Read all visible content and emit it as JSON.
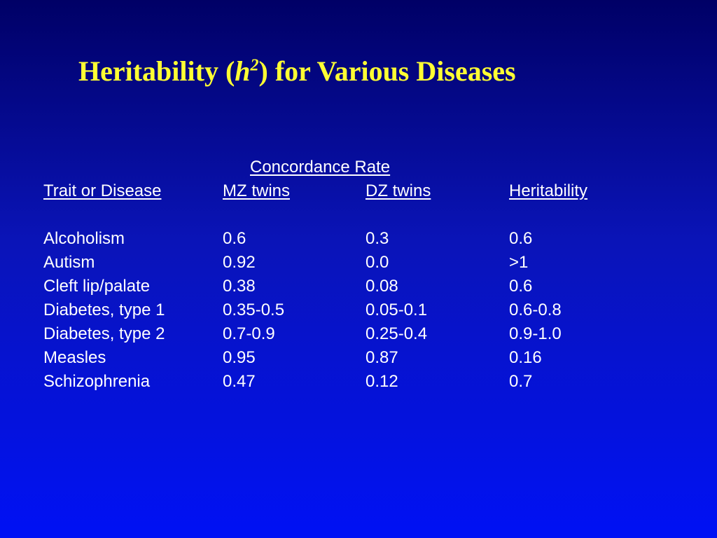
{
  "title": {
    "prefix": "Heritability (",
    "symbol": "h",
    "superscript": "2",
    "suffix": ") for Various Diseases"
  },
  "table": {
    "group_header": "Concordance Rate",
    "headers": [
      "Trait or Disease",
      "MZ twins",
      "DZ twins",
      "Heritability"
    ],
    "rows": [
      [
        "Alcoholism",
        "0.6",
        "0.3",
        "0.6"
      ],
      [
        "Autism",
        "0.92",
        "0.0",
        ">1"
      ],
      [
        "Cleft lip/palate",
        "0.38",
        "0.08",
        "0.6"
      ],
      [
        "Diabetes, type 1",
        "0.35-0.5",
        "0.05-0.1",
        "0.6-0.8"
      ],
      [
        "Diabetes, type 2",
        "0.7-0.9",
        "0.25-0.4",
        "0.9-1.0"
      ],
      [
        "Measles",
        "0.95",
        "0.87",
        "0.16"
      ],
      [
        "Schizophrenia",
        "0.47",
        "0.12",
        "0.7"
      ]
    ]
  },
  "colors": {
    "title": "#ffff33",
    "text": "#ffffff",
    "background_top": "#000066",
    "background_bottom": "#0011f5"
  }
}
